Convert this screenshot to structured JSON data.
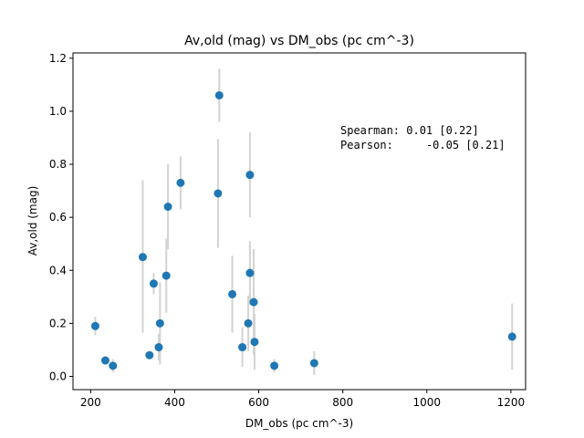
{
  "chart_data": {
    "type": "scatter",
    "title": "Av,old (mag) vs DM_obs (pc cm^-3)",
    "xlabel": "DM_obs (pc cm^-3)",
    "ylabel": "Av,old (mag)",
    "xlim": [
      158,
      1235
    ],
    "ylim": [
      -0.05,
      1.22
    ],
    "xticks": [
      200,
      400,
      600,
      800,
      1000,
      1200
    ],
    "yticks": [
      0.0,
      0.2,
      0.4,
      0.6,
      0.8,
      1.0,
      1.2
    ],
    "xtick_labels": [
      "200",
      "400",
      "600",
      "800",
      "1000",
      "1200"
    ],
    "ytick_labels": [
      "0.0",
      "0.2",
      "0.4",
      "0.6",
      "0.8",
      "1.0",
      "1.2"
    ],
    "annotation_lines": [
      "Spearman: 0.01 [0.22]",
      "Pearson:     -0.05 [0.21]"
    ],
    "marker_color": "#1f77b4",
    "errorbar_color": "#d3d3d3",
    "grid": false,
    "points": [
      {
        "x": 211,
        "y": 0.19,
        "ylo": 0.155,
        "yhi": 0.225
      },
      {
        "x": 235,
        "y": 0.06,
        "ylo": 0.05,
        "yhi": 0.07
      },
      {
        "x": 253,
        "y": 0.04,
        "ylo": 0.015,
        "yhi": 0.065
      },
      {
        "x": 324,
        "y": 0.45,
        "ylo": 0.165,
        "yhi": 0.74
      },
      {
        "x": 340,
        "y": 0.08,
        "ylo": 0.075,
        "yhi": 0.085
      },
      {
        "x": 350,
        "y": 0.35,
        "ylo": 0.31,
        "yhi": 0.39
      },
      {
        "x": 362,
        "y": 0.11,
        "ylo": 0.06,
        "yhi": 0.16
      },
      {
        "x": 365,
        "y": 0.2,
        "ylo": 0.045,
        "yhi": 0.355
      },
      {
        "x": 380,
        "y": 0.38,
        "ylo": 0.24,
        "yhi": 0.52
      },
      {
        "x": 384,
        "y": 0.64,
        "ylo": 0.48,
        "yhi": 0.8
      },
      {
        "x": 414,
        "y": 0.73,
        "ylo": 0.63,
        "yhi": 0.83
      },
      {
        "x": 503,
        "y": 0.69,
        "ylo": 0.485,
        "yhi": 0.895
      },
      {
        "x": 506,
        "y": 1.06,
        "ylo": 0.96,
        "yhi": 1.16
      },
      {
        "x": 537,
        "y": 0.31,
        "ylo": 0.165,
        "yhi": 0.455
      },
      {
        "x": 561,
        "y": 0.11,
        "ylo": 0.035,
        "yhi": 0.185
      },
      {
        "x": 575,
        "y": 0.2,
        "ylo": 0.095,
        "yhi": 0.305
      },
      {
        "x": 579,
        "y": 0.76,
        "ylo": 0.6,
        "yhi": 0.92
      },
      {
        "x": 579,
        "y": 0.39,
        "ylo": 0.27,
        "yhi": 0.51
      },
      {
        "x": 588,
        "y": 0.28,
        "ylo": 0.08,
        "yhi": 0.48
      },
      {
        "x": 590,
        "y": 0.13,
        "ylo": 0.025,
        "yhi": 0.235
      },
      {
        "x": 637,
        "y": 0.04,
        "ylo": 0.015,
        "yhi": 0.065
      },
      {
        "x": 732,
        "y": 0.05,
        "ylo": 0.005,
        "yhi": 0.095
      },
      {
        "x": 1203,
        "y": 0.15,
        "ylo": 0.025,
        "yhi": 0.275
      }
    ]
  }
}
